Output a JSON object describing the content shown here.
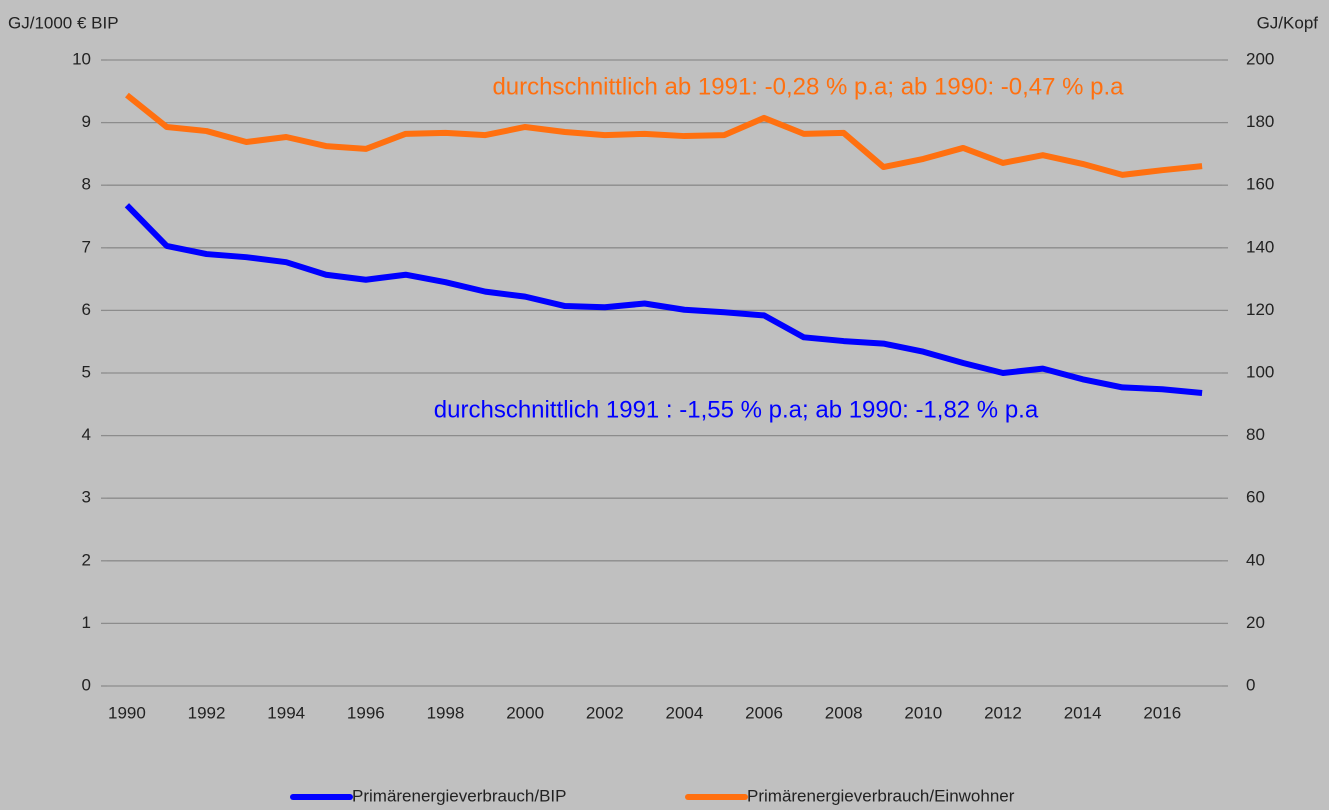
{
  "chart_data": {
    "type": "line",
    "y_label": "GJ/1000 € BIP",
    "y2_label": "GJ/Kopf",
    "categories": [
      "1990",
      null,
      "1992",
      null,
      "1994",
      null,
      "1996",
      null,
      "1998",
      null,
      "2000",
      null,
      "2002",
      null,
      "2004",
      null,
      "2006",
      null,
      "2008",
      null,
      "2010",
      null,
      "2012",
      null,
      "2014",
      null,
      "2016",
      null
    ],
    "series": [
      {
        "name": "Primärenergieverbrauch/BIP",
        "color": "#0000ff",
        "axis": "y",
        "values": [
          7.68,
          7.03,
          6.9,
          6.85,
          6.77,
          6.57,
          6.49,
          6.57,
          6.45,
          6.3,
          6.22,
          6.07,
          6.05,
          6.11,
          6.01,
          5.97,
          5.92,
          5.57,
          5.51,
          5.47,
          5.34,
          5.16,
          5.0,
          5.07,
          4.9,
          4.77,
          4.74,
          4.68
        ]
      },
      {
        "name": "Primärenergieverbrauch/Einwohner",
        "color": "#ff7010",
        "axis": "y2",
        "values": [
          188.8,
          178.6,
          177.3,
          173.8,
          175.4,
          172.5,
          171.6,
          176.4,
          176.7,
          176.0,
          178.6,
          177.0,
          176.0,
          176.4,
          175.7,
          176.0,
          181.5,
          176.4,
          176.7,
          165.8,
          168.4,
          171.9,
          167.1,
          169.6,
          166.8,
          163.3,
          164.8,
          166.1
        ]
      }
    ],
    "annotations": [
      {
        "text": "durchschnittlich ab 1991: -0,28 % p.a; ab 1990: -0,47 % p.a",
        "color": "#ff7010"
      },
      {
        "text": "durchschnittlich 1991 : -1,55 % p.a; ab 1990: -1,82 % p.a",
        "color": "#0000ff"
      }
    ],
    "ylim": [
      0,
      10
    ],
    "yticks": [
      0,
      1,
      2,
      3,
      4,
      5,
      6,
      7,
      8,
      9,
      10
    ],
    "y2lim": [
      0,
      200
    ],
    "y2ticks": [
      0,
      20,
      40,
      60,
      80,
      100,
      120,
      140,
      160,
      180,
      200
    ],
    "grid": true,
    "legend": "bottom"
  }
}
